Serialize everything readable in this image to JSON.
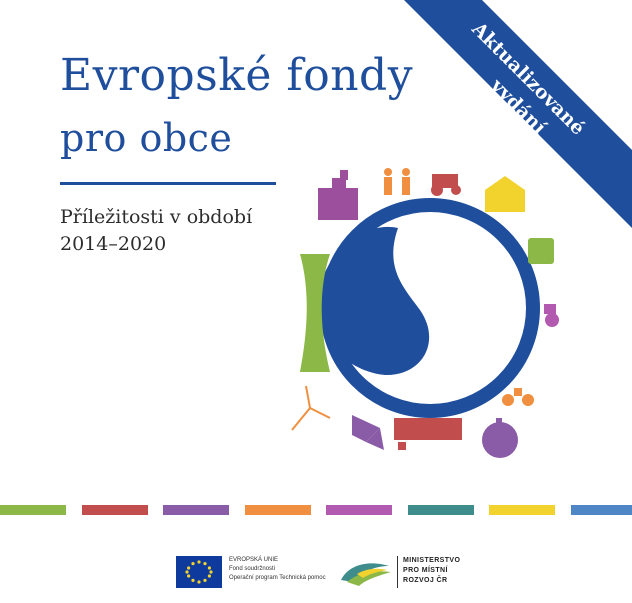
{
  "title": {
    "line1": "Evropské fondy",
    "line2": "pro obce"
  },
  "subtitle": {
    "line1": "Příležitosti v období",
    "line2": "2014–2020"
  },
  "ribbon": {
    "line1": "Aktualizované",
    "line2": "vydání",
    "color": "#1f4e9c"
  },
  "colors": {
    "primary_blue": "#1f4e9c",
    "stripes": [
      "#8cb847",
      "#c24d4d",
      "#8a5ba6",
      "#ef8f3f",
      "#b25ab0",
      "#3f8c8c",
      "#f2d22c",
      "#4f86c6"
    ]
  },
  "globe_icons": [
    "castle-icon",
    "hikers-icon",
    "tractor-icon",
    "house-icon",
    "bus-icon",
    "wheelchair-icon",
    "cyclist-icon",
    "tree-icon",
    "school-icon",
    "flower-icon",
    "wind-turbine-icon",
    "cooling-tower-icon"
  ],
  "footer": {
    "eu": {
      "line1": "EVROPSKÁ UNIE",
      "line2": "Fond soudržnosti",
      "line3": "Operační program Technická pomoc"
    },
    "ministry": {
      "line1": "MINISTERSTVO",
      "line2": "PRO MÍSTNÍ",
      "line3": "ROZVOJ ČR"
    }
  }
}
